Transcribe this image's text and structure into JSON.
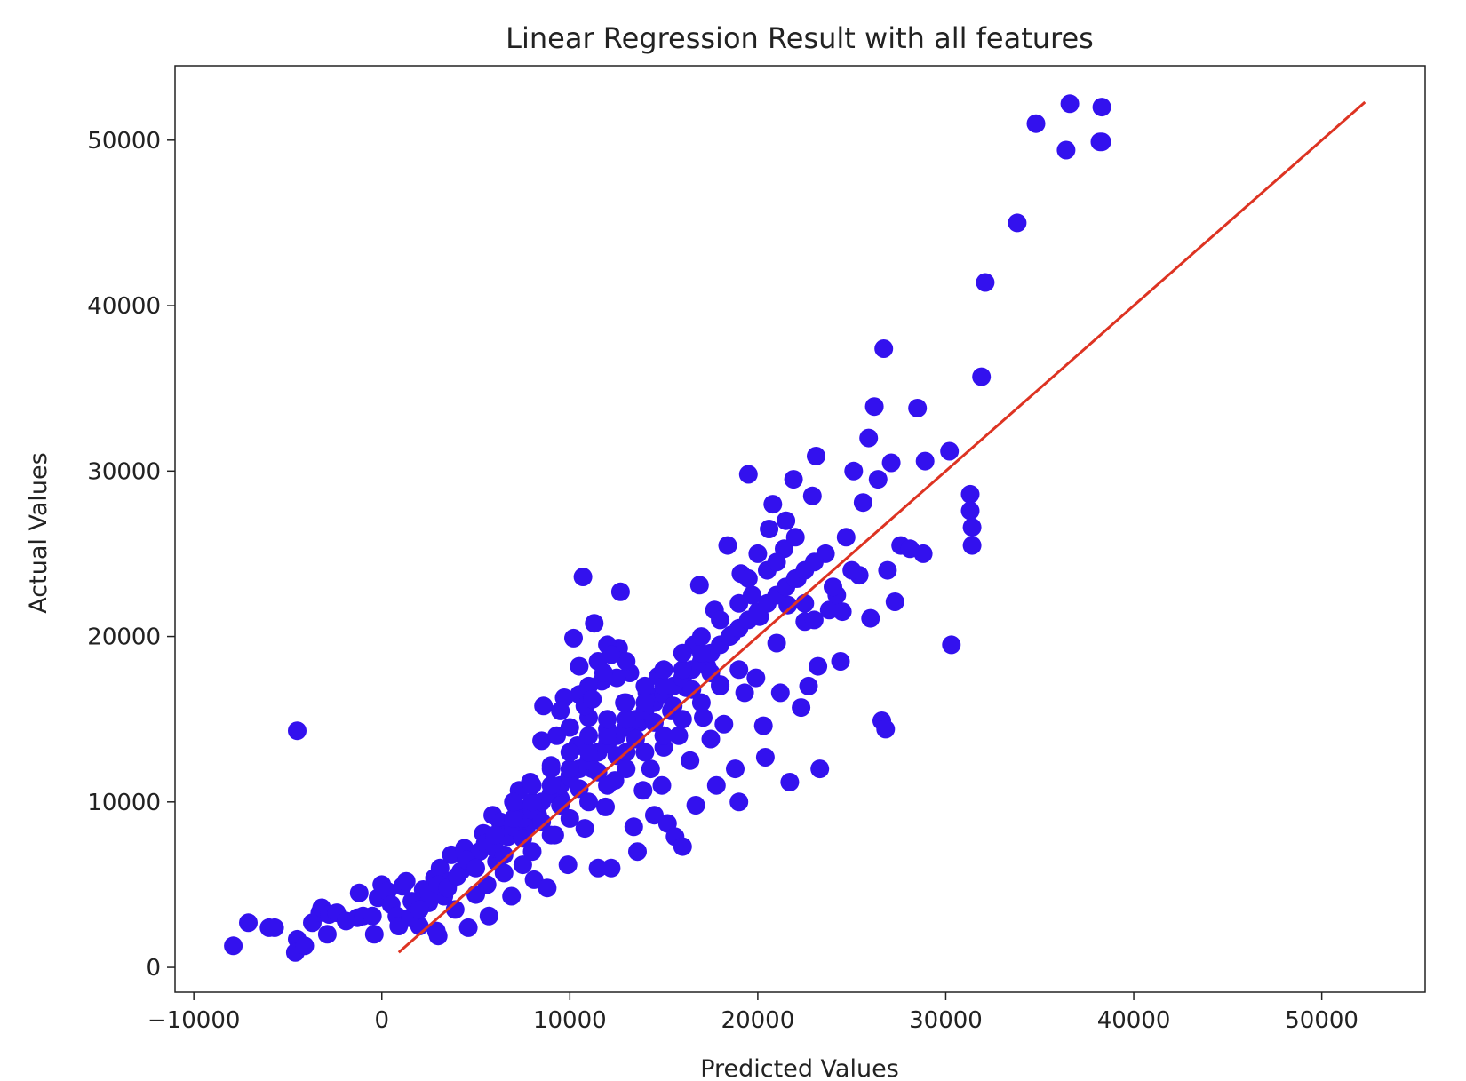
{
  "chart_data": {
    "type": "scatter",
    "title": "Linear Regression Result with all features",
    "xlabel": "Predicted Values",
    "ylabel": "Actual Values",
    "xlim": [
      -11000,
      55500
    ],
    "ylim": [
      -1500,
      54500
    ],
    "xticks": [
      -10000,
      0,
      10000,
      20000,
      30000,
      40000,
      50000
    ],
    "xtick_labels": [
      "−10000",
      "0",
      "10000",
      "20000",
      "30000",
      "40000",
      "50000"
    ],
    "yticks": [
      0,
      10000,
      20000,
      30000,
      40000,
      50000
    ],
    "ytick_labels": [
      "0",
      "10000",
      "20000",
      "30000",
      "40000",
      "50000"
    ],
    "grid": false,
    "legend": "none",
    "colors": {
      "points": "#3311ee",
      "fit_line": "#dd3322",
      "axes": "#222222"
    },
    "series": [
      {
        "kind": "scatter",
        "points": [
          [
            -7900,
            1300
          ],
          [
            -7100,
            2700
          ],
          [
            -6000,
            2400
          ],
          [
            -5700,
            2400
          ],
          [
            -4500,
            1700
          ],
          [
            -4600,
            900
          ],
          [
            -4100,
            1300
          ],
          [
            -4500,
            14300
          ],
          [
            -3700,
            2700
          ],
          [
            -3300,
            3300
          ],
          [
            -3200,
            3600
          ],
          [
            -2900,
            2000
          ],
          [
            -2800,
            3200
          ],
          [
            -2400,
            3300
          ],
          [
            -1900,
            2800
          ],
          [
            -1300,
            3000
          ],
          [
            -1200,
            4500
          ],
          [
            -1000,
            3100
          ],
          [
            -500,
            3100
          ],
          [
            -400,
            2000
          ],
          [
            -200,
            4200
          ],
          [
            0,
            5000
          ],
          [
            300,
            4600
          ],
          [
            500,
            3800
          ],
          [
            800,
            3100
          ],
          [
            900,
            2500
          ],
          [
            1100,
            4900
          ],
          [
            1300,
            5200
          ],
          [
            1600,
            4000
          ],
          [
            1900,
            3400
          ],
          [
            2000,
            2500
          ],
          [
            2200,
            4700
          ],
          [
            2500,
            3900
          ],
          [
            2800,
            5400
          ],
          [
            2900,
            2200
          ],
          [
            3000,
            1900
          ],
          [
            3100,
            6000
          ],
          [
            3300,
            4300
          ],
          [
            3600,
            5200
          ],
          [
            3700,
            6800
          ],
          [
            3900,
            3500
          ],
          [
            4200,
            5800
          ],
          [
            4400,
            7200
          ],
          [
            4600,
            2400
          ],
          [
            4800,
            6100
          ],
          [
            5000,
            4400
          ],
          [
            5200,
            7000
          ],
          [
            5400,
            8100
          ],
          [
            5600,
            5000
          ],
          [
            5700,
            3100
          ],
          [
            5900,
            9200
          ],
          [
            6100,
            6400
          ],
          [
            6300,
            8800
          ],
          [
            6500,
            5700
          ],
          [
            6700,
            7900
          ],
          [
            6900,
            4300
          ],
          [
            7100,
            9800
          ],
          [
            7300,
            10700
          ],
          [
            7500,
            6200
          ],
          [
            7700,
            8500
          ],
          [
            7900,
            11200
          ],
          [
            8100,
            5300
          ],
          [
            8300,
            9200
          ],
          [
            8500,
            13700
          ],
          [
            8600,
            15800
          ],
          [
            8800,
            4800
          ],
          [
            9000,
            12200
          ],
          [
            9200,
            8000
          ],
          [
            9300,
            14000
          ],
          [
            9500,
            10200
          ],
          [
            9700,
            16300
          ],
          [
            9900,
            6200
          ],
          [
            10000,
            11600
          ],
          [
            10200,
            19900
          ],
          [
            10400,
            13400
          ],
          [
            10500,
            18200
          ],
          [
            10700,
            23600
          ],
          [
            10800,
            8400
          ],
          [
            11000,
            15100
          ],
          [
            11200,
            12000
          ],
          [
            11300,
            20800
          ],
          [
            11500,
            6000
          ],
          [
            11700,
            17300
          ],
          [
            11900,
            9700
          ],
          [
            12000,
            14400
          ],
          [
            12200,
            6000
          ],
          [
            12400,
            11300
          ],
          [
            12600,
            19300
          ],
          [
            12700,
            22700
          ],
          [
            12900,
            16000
          ],
          [
            13000,
            13000
          ],
          [
            13200,
            17800
          ],
          [
            13400,
            8500
          ],
          [
            13600,
            7000
          ],
          [
            13700,
            14800
          ],
          [
            13900,
            10700
          ],
          [
            14100,
            16600
          ],
          [
            14300,
            12000
          ],
          [
            14500,
            9200
          ],
          [
            14700,
            17600
          ],
          [
            14900,
            11000
          ],
          [
            15000,
            13300
          ],
          [
            15200,
            8700
          ],
          [
            15400,
            15500
          ],
          [
            15600,
            7900
          ],
          [
            15800,
            14000
          ],
          [
            16000,
            7300
          ],
          [
            16200,
            16900
          ],
          [
            16400,
            12500
          ],
          [
            16600,
            19500
          ],
          [
            16700,
            9800
          ],
          [
            16900,
            23100
          ],
          [
            17100,
            15100
          ],
          [
            17300,
            18200
          ],
          [
            17500,
            13800
          ],
          [
            17700,
            21600
          ],
          [
            17800,
            11000
          ],
          [
            18000,
            17100
          ],
          [
            18200,
            14700
          ],
          [
            18400,
            25500
          ],
          [
            18600,
            20100
          ],
          [
            18800,
            12000
          ],
          [
            19000,
            10000
          ],
          [
            19100,
            23800
          ],
          [
            19300,
            16600
          ],
          [
            19500,
            29800
          ],
          [
            19700,
            22500
          ],
          [
            19900,
            17500
          ],
          [
            20100,
            21200
          ],
          [
            20300,
            14600
          ],
          [
            20400,
            12700
          ],
          [
            20600,
            26500
          ],
          [
            20800,
            28000
          ],
          [
            21000,
            19600
          ],
          [
            21200,
            16600
          ],
          [
            21400,
            25300
          ],
          [
            21600,
            21900
          ],
          [
            21700,
            11200
          ],
          [
            21900,
            29500
          ],
          [
            22100,
            23500
          ],
          [
            22300,
            15700
          ],
          [
            22500,
            20900
          ],
          [
            22700,
            17000
          ],
          [
            22900,
            28500
          ],
          [
            23100,
            30900
          ],
          [
            23200,
            18200
          ],
          [
            23300,
            12000
          ],
          [
            23600,
            25000
          ],
          [
            23800,
            21600
          ],
          [
            24200,
            22500
          ],
          [
            24400,
            18500
          ],
          [
            24700,
            26000
          ],
          [
            25100,
            30000
          ],
          [
            25400,
            23700
          ],
          [
            25600,
            28100
          ],
          [
            25900,
            32000
          ],
          [
            26000,
            21100
          ],
          [
            26200,
            33900
          ],
          [
            26400,
            29500
          ],
          [
            26600,
            14900
          ],
          [
            26700,
            37400
          ],
          [
            26800,
            14400
          ],
          [
            26900,
            24000
          ],
          [
            27100,
            30500
          ],
          [
            27300,
            22100
          ],
          [
            27600,
            25500
          ],
          [
            28100,
            25300
          ],
          [
            28500,
            33800
          ],
          [
            28800,
            25000
          ],
          [
            28900,
            30600
          ],
          [
            30200,
            31200
          ],
          [
            30300,
            19500
          ],
          [
            31300,
            28600
          ],
          [
            31300,
            27600
          ],
          [
            31400,
            26600
          ],
          [
            31400,
            25500
          ],
          [
            31900,
            35700
          ],
          [
            32100,
            41400
          ],
          [
            33800,
            45000
          ],
          [
            34800,
            51000
          ],
          [
            36400,
            49400
          ],
          [
            36600,
            52200
          ],
          [
            38200,
            49900
          ],
          [
            38300,
            52000
          ],
          [
            38300,
            49900
          ],
          [
            1500,
            3000
          ],
          [
            2000,
            3500
          ],
          [
            2500,
            4500
          ],
          [
            3000,
            5000
          ],
          [
            3500,
            4800
          ],
          [
            4000,
            5500
          ],
          [
            4500,
            6500
          ],
          [
            5000,
            6000
          ],
          [
            5500,
            7500
          ],
          [
            6000,
            7200
          ],
          [
            6500,
            8000
          ],
          [
            7000,
            8500
          ],
          [
            7500,
            9000
          ],
          [
            8000,
            9500
          ],
          [
            8500,
            10000
          ],
          [
            9000,
            10500
          ],
          [
            9500,
            11000
          ],
          [
            10000,
            11500
          ],
          [
            10500,
            12000
          ],
          [
            11000,
            12500
          ],
          [
            11500,
            13000
          ],
          [
            12000,
            13500
          ],
          [
            12500,
            14000
          ],
          [
            13000,
            14500
          ],
          [
            13500,
            15000
          ],
          [
            14000,
            15500
          ],
          [
            14500,
            16000
          ],
          [
            15000,
            16500
          ],
          [
            15500,
            17000
          ],
          [
            16000,
            17500
          ],
          [
            16500,
            18000
          ],
          [
            17000,
            18500
          ],
          [
            17500,
            19000
          ],
          [
            18000,
            19500
          ],
          [
            18500,
            20000
          ],
          [
            19000,
            20500
          ],
          [
            19500,
            21000
          ],
          [
            20000,
            21500
          ],
          [
            20500,
            22000
          ],
          [
            21000,
            22500
          ],
          [
            21500,
            23000
          ],
          [
            22000,
            23500
          ],
          [
            22500,
            24000
          ],
          [
            23000,
            24500
          ],
          [
            6000,
            8000
          ],
          [
            7000,
            9000
          ],
          [
            8000,
            10000
          ],
          [
            9000,
            11000
          ],
          [
            10000,
            12000
          ],
          [
            11000,
            13000
          ],
          [
            12000,
            14000
          ],
          [
            13000,
            15000
          ],
          [
            14000,
            16000
          ],
          [
            15000,
            17000
          ],
          [
            16000,
            18000
          ],
          [
            17000,
            19000
          ],
          [
            6500,
            6800
          ],
          [
            7500,
            7800
          ],
          [
            8500,
            8800
          ],
          [
            9500,
            9800
          ],
          [
            10500,
            10800
          ],
          [
            11500,
            11800
          ],
          [
            12500,
            12800
          ],
          [
            13500,
            13800
          ],
          [
            14500,
            14800
          ],
          [
            15500,
            15800
          ],
          [
            16500,
            16800
          ],
          [
            17500,
            17800
          ],
          [
            7000,
            10000
          ],
          [
            8000,
            11000
          ],
          [
            9000,
            12000
          ],
          [
            10000,
            13000
          ],
          [
            11000,
            14000
          ],
          [
            12000,
            15000
          ],
          [
            13000,
            16000
          ],
          [
            14000,
            17000
          ],
          [
            15000,
            18000
          ],
          [
            16000,
            19000
          ],
          [
            17000,
            20000
          ],
          [
            18000,
            21000
          ],
          [
            8000,
            7000
          ],
          [
            9000,
            8000
          ],
          [
            10000,
            9000
          ],
          [
            11000,
            10000
          ],
          [
            12000,
            11000
          ],
          [
            13000,
            12000
          ],
          [
            14000,
            13000
          ],
          [
            15000,
            14000
          ],
          [
            16000,
            15000
          ],
          [
            17000,
            16000
          ],
          [
            18000,
            17000
          ],
          [
            19000,
            18000
          ],
          [
            10500,
            16500
          ],
          [
            11000,
            17000
          ],
          [
            11500,
            18500
          ],
          [
            12000,
            19500
          ],
          [
            12500,
            17500
          ],
          [
            13000,
            18500
          ],
          [
            9500,
            15500
          ],
          [
            10000,
            14500
          ],
          [
            10800,
            15800
          ],
          [
            11200,
            16200
          ],
          [
            11800,
            17800
          ],
          [
            12200,
            18900
          ],
          [
            20500,
            24000
          ],
          [
            21000,
            24500
          ],
          [
            21500,
            27000
          ],
          [
            20000,
            25000
          ],
          [
            19000,
            22000
          ],
          [
            19500,
            23500
          ],
          [
            22000,
            26000
          ],
          [
            22500,
            22000
          ],
          [
            23000,
            21000
          ],
          [
            24000,
            23000
          ],
          [
            24500,
            21500
          ],
          [
            25000,
            24000
          ]
        ]
      },
      {
        "kind": "line",
        "points": [
          [
            900,
            900
          ],
          [
            52300,
            52300
          ]
        ]
      }
    ]
  }
}
